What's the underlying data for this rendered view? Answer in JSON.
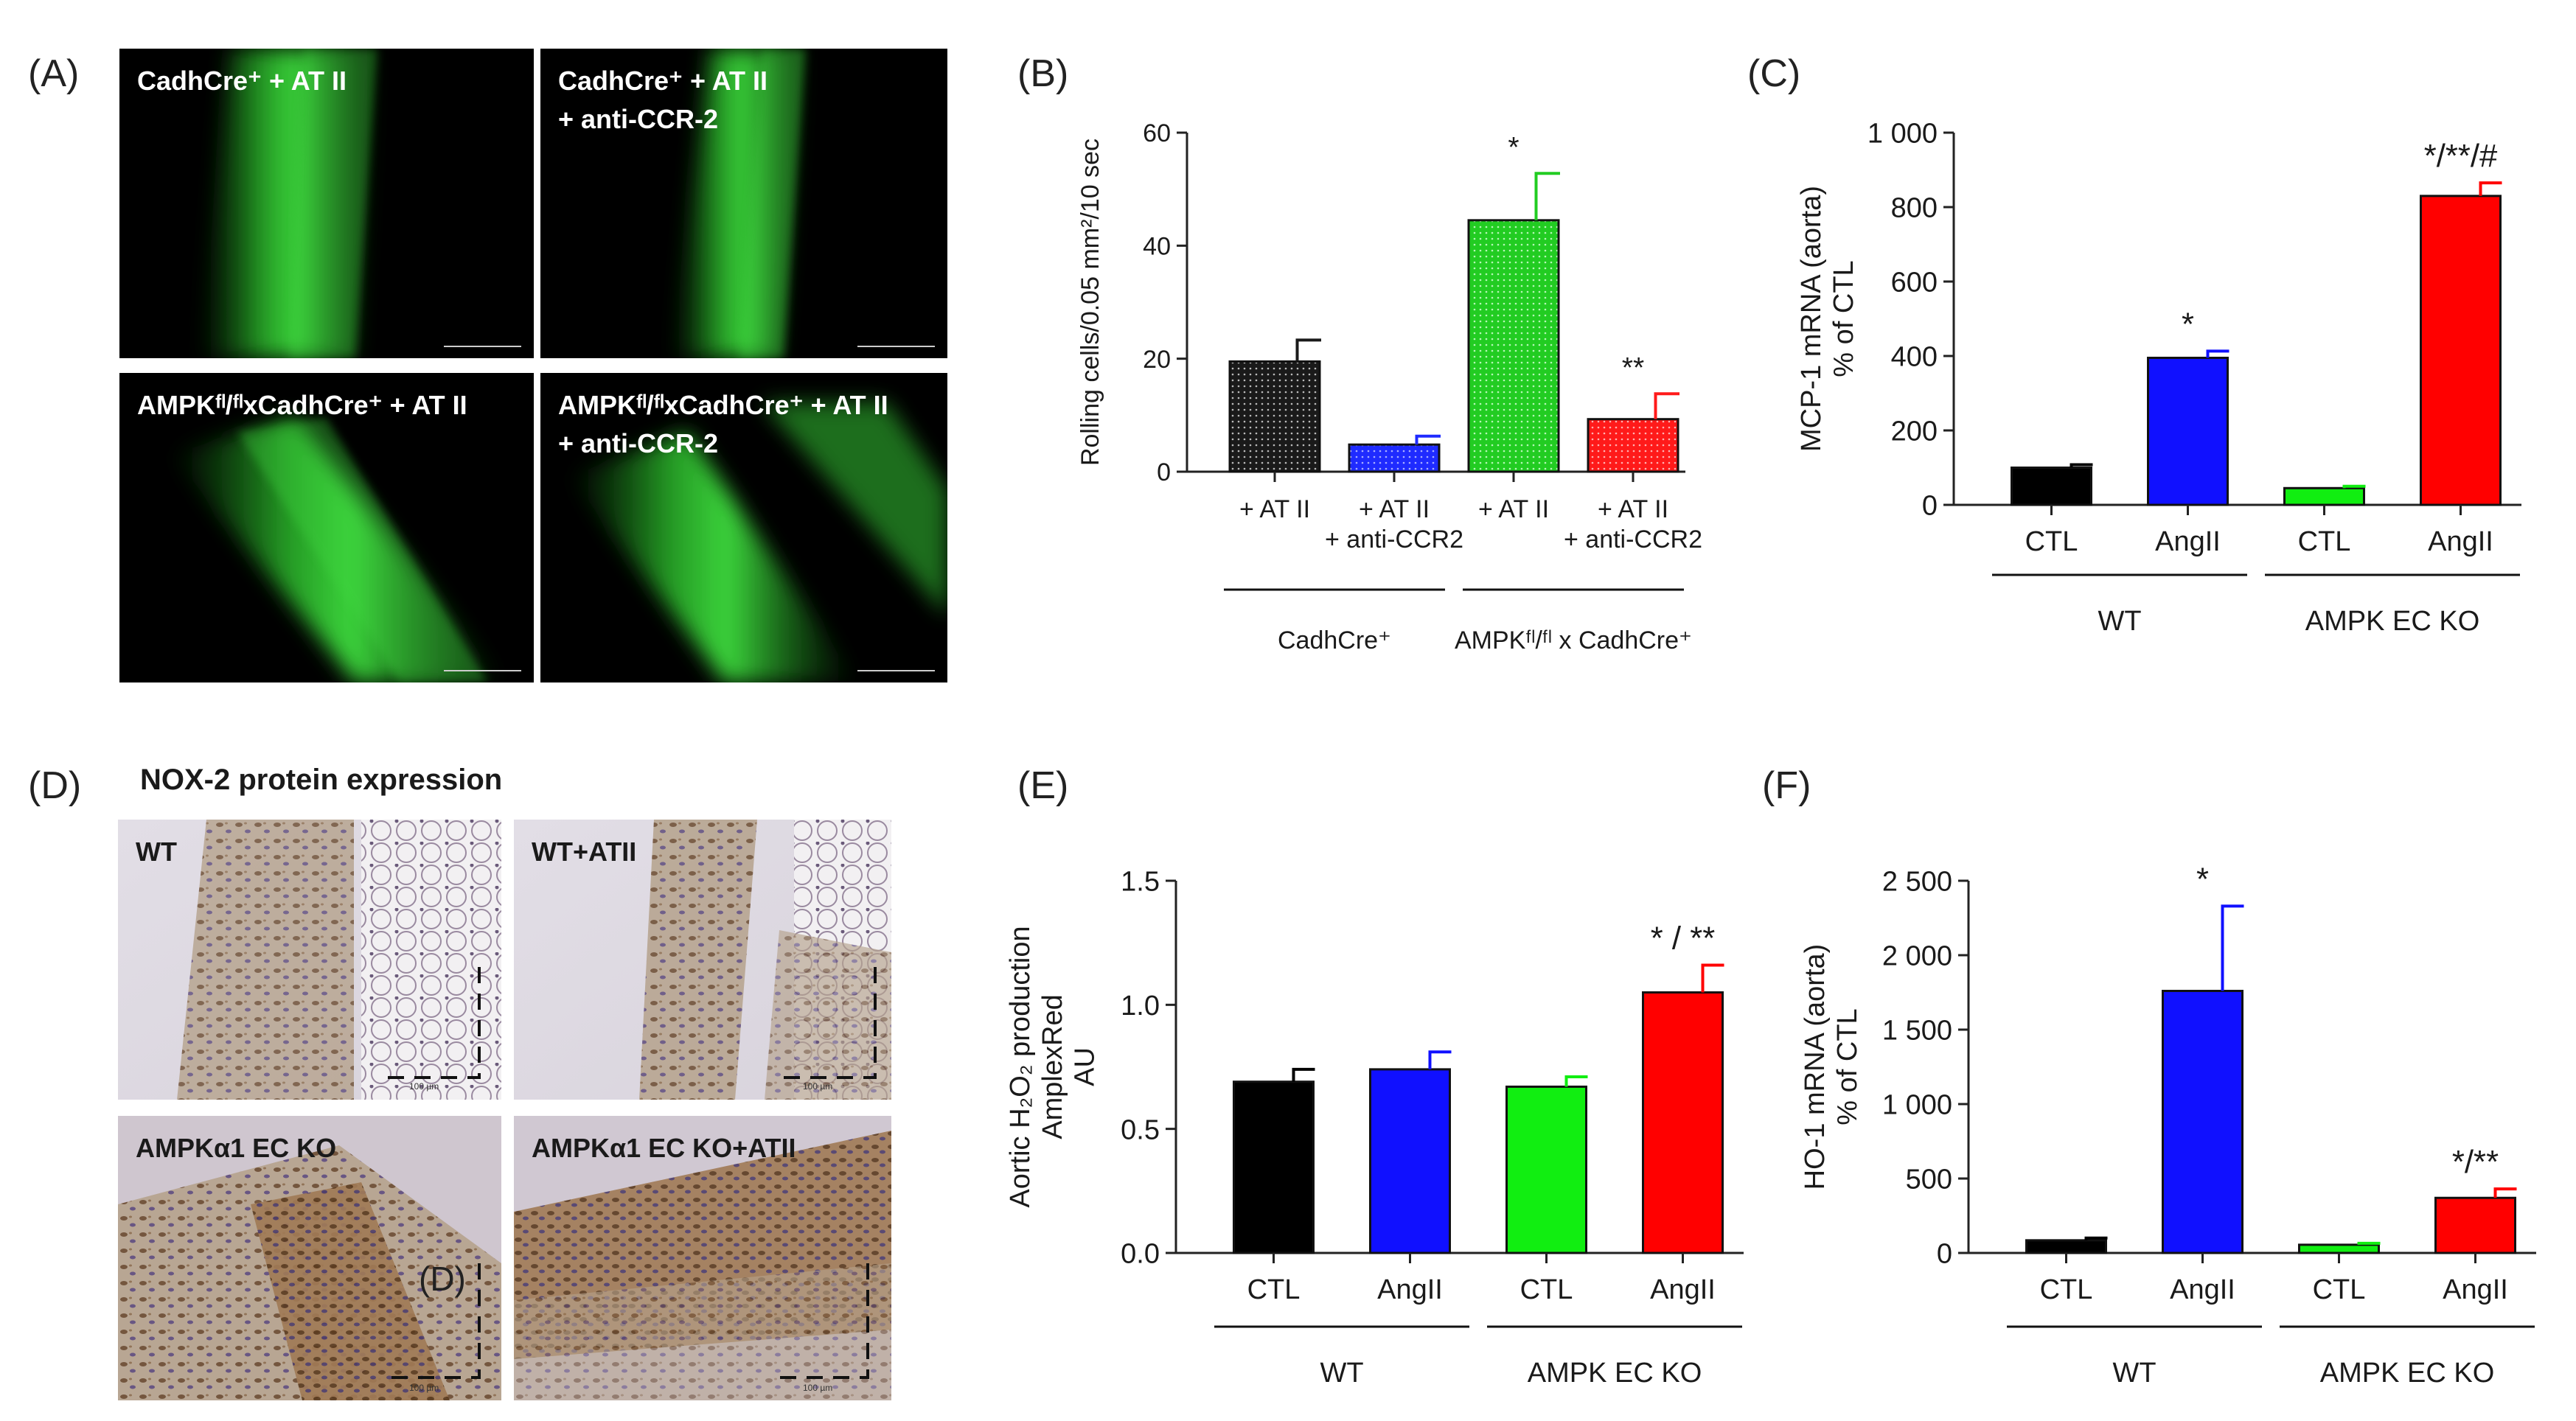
{
  "panels": {
    "A": {
      "label": "(A)",
      "images": [
        {
          "title": "CadhCre⁺ + AT II",
          "subtitle": ""
        },
        {
          "title": "CadhCre⁺ + AT II",
          "subtitle": "+ anti-CCR-2"
        },
        {
          "title": "AMPKᶠˡ/ᶠˡxCadhCre⁺ + AT II",
          "subtitle": ""
        },
        {
          "title": "AMPKᶠˡ/ᶠˡxCadhCre⁺ + AT II",
          "subtitle": "+ anti-CCR-2"
        }
      ]
    },
    "D": {
      "label": "(D)",
      "title": "NOX-2 protein expression",
      "images": [
        {
          "title": "WT",
          "overlay": "",
          "scalebar": "100 µm"
        },
        {
          "title": "WT+ATII",
          "overlay": "",
          "scalebar": "100 µm"
        },
        {
          "title": "AMPKα1 EC KO",
          "overlay": "(D)",
          "scalebar": "100 µm"
        },
        {
          "title": "AMPKα1 EC KO+ATII",
          "overlay": "",
          "scalebar": "100 µm"
        }
      ]
    },
    "B": {
      "label": "(B)"
    },
    "C": {
      "label": "(C)"
    },
    "E": {
      "label": "(E)"
    },
    "F": {
      "label": "(F)"
    }
  },
  "chart_data": [
    {
      "id": "B",
      "type": "bar",
      "ylabel": "Rolling cells/0.05 mm²/10 sec",
      "ylim": [
        0,
        60
      ],
      "yticks": [
        0,
        20,
        40,
        60
      ],
      "ytick_labels": [
        "0",
        "20",
        "40",
        "60"
      ],
      "categories": [
        "+ AT II",
        "+ AT II\n+ anti-CCR2",
        "+ AT II",
        "+ AT II\n+ anti-CCR2"
      ],
      "values": [
        19.5,
        4.8,
        44.5,
        9.3
      ],
      "errors": [
        3.8,
        1.5,
        8.3,
        4.5
      ],
      "colors": [
        "#1a1a1a",
        "#1f2bff",
        "#22cc22",
        "#ff1a1a"
      ],
      "pattern": "dotted",
      "annotations": [
        "",
        "",
        "*",
        "**"
      ],
      "groups": [
        {
          "label": "CadhCre⁺",
          "from": 0,
          "to": 1
        },
        {
          "label": "AMPKᶠˡ/ᶠˡ x CadhCre⁺",
          "from": 2,
          "to": 3
        }
      ]
    },
    {
      "id": "C",
      "type": "bar",
      "ylabel": "MCP-1 mRNA (aorta)\n% of CTL",
      "ylim": [
        0,
        1000
      ],
      "yticks": [
        0,
        200,
        400,
        600,
        800,
        1000
      ],
      "ytick_labels": [
        "0",
        "200",
        "400",
        "600",
        "800",
        "1 000"
      ],
      "categories": [
        "CTL",
        "AngII",
        "CTL",
        "AngII"
      ],
      "values": [
        100,
        395,
        45,
        830
      ],
      "errors": [
        8,
        18,
        5,
        35
      ],
      "colors": [
        "#000000",
        "#1010ff",
        "#11ee11",
        "#ff0000"
      ],
      "pattern": "solid",
      "annotations": [
        "",
        "*",
        "",
        "*/**/#"
      ],
      "groups": [
        {
          "label": "WT",
          "from": 0,
          "to": 1
        },
        {
          "label": "AMPK EC KO",
          "from": 2,
          "to": 3
        }
      ]
    },
    {
      "id": "E",
      "type": "bar",
      "ylabel": "Aortic H₂O₂ production\nAmplexRed\nAU",
      "ylim": [
        0,
        1.5
      ],
      "yticks": [
        0,
        0.5,
        1.0,
        1.5
      ],
      "ytick_labels": [
        "0.0",
        "0.5",
        "1.0",
        "1.5"
      ],
      "categories": [
        "CTL",
        "AngII",
        "CTL",
        "AngII"
      ],
      "values": [
        0.69,
        0.74,
        0.67,
        1.05
      ],
      "errors": [
        0.05,
        0.07,
        0.04,
        0.11
      ],
      "colors": [
        "#000000",
        "#1010ff",
        "#11ee11",
        "#ff0000"
      ],
      "pattern": "solid",
      "annotations": [
        "",
        "",
        "",
        "* / **"
      ],
      "groups": [
        {
          "label": "WT",
          "from": 0,
          "to": 1
        },
        {
          "label": "AMPK EC KO",
          "from": 2,
          "to": 3
        }
      ]
    },
    {
      "id": "F",
      "type": "bar",
      "ylabel": "HO-1 mRNA (aorta)\n% of CTL",
      "ylim": [
        0,
        2500
      ],
      "yticks": [
        0,
        500,
        1000,
        1500,
        2000,
        2500
      ],
      "ytick_labels": [
        "0",
        "500",
        "1 000",
        "1 500",
        "2 000",
        "2 500"
      ],
      "categories": [
        "CTL",
        "AngII",
        "CTL",
        "AngII"
      ],
      "values": [
        85,
        1760,
        55,
        370
      ],
      "errors": [
        15,
        570,
        10,
        60
      ],
      "colors": [
        "#000000",
        "#1010ff",
        "#11ee11",
        "#ff0000"
      ],
      "pattern": "solid",
      "annotations": [
        "",
        "*",
        "",
        "*/**"
      ],
      "groups": [
        {
          "label": "WT",
          "from": 0,
          "to": 1
        },
        {
          "label": "AMPK EC KO",
          "from": 2,
          "to": 3
        }
      ]
    }
  ]
}
